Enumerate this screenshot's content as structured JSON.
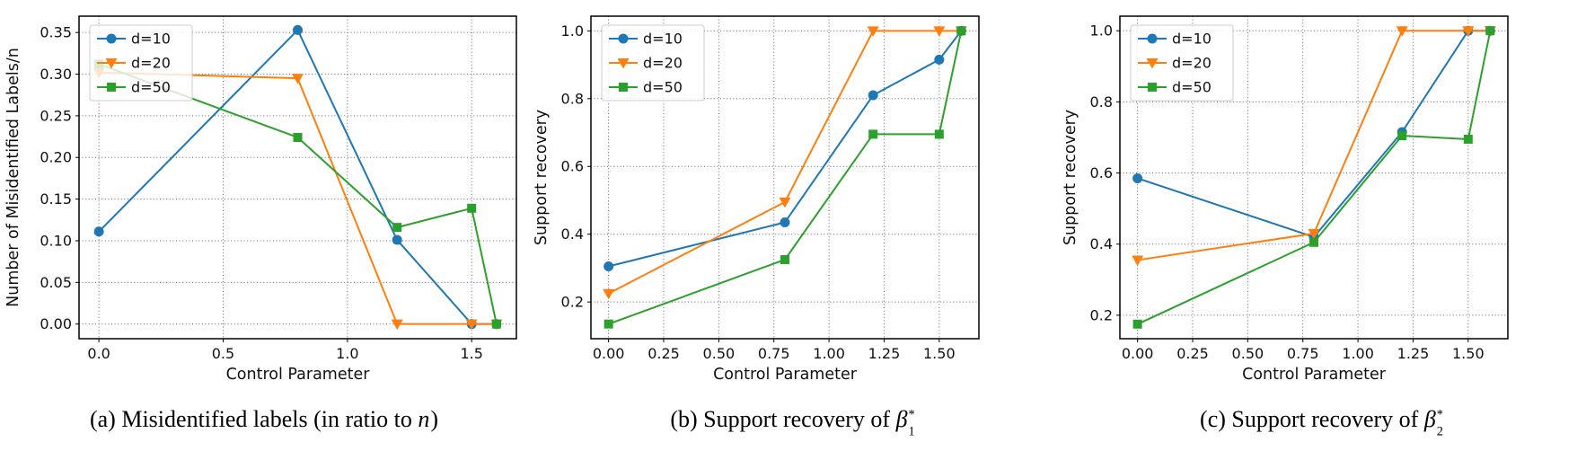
{
  "colors": {
    "d10": "#1f77b4",
    "d20": "#ff7f0e",
    "d50": "#2ca02c",
    "grid": "#666666",
    "spine": "#000000",
    "legend_border": "#cccccc"
  },
  "captions": [
    {
      "prefix": "(a) Misidentified labels (in ratio to ",
      "italic": "n",
      "suffix": ")",
      "symbol": "",
      "sub": "",
      "sup": ""
    },
    {
      "prefix": "(b) Support recovery of ",
      "italic": "",
      "suffix": "",
      "symbol": "β",
      "sub": "1",
      "sup": "*"
    },
    {
      "prefix": "(c) Support recovery of ",
      "italic": "",
      "suffix": "",
      "symbol": "β",
      "sub": "2",
      "sup": "*"
    }
  ],
  "chart_data": [
    {
      "type": "line",
      "title": "(a) Misidentified labels (in ratio to n)",
      "xlabel": "Control Parameter",
      "ylabel": "Number of Misidentified Labels/n",
      "x": [
        0.0,
        0.8,
        1.2,
        1.5,
        1.6
      ],
      "series": [
        {
          "name": "d=10",
          "color": "#1f77b4",
          "marker": "circle",
          "values": [
            0.111,
            0.353,
            0.101,
            0.0,
            0.0
          ]
        },
        {
          "name": "d=20",
          "color": "#ff7f0e",
          "marker": "triangle-down",
          "values": [
            0.302,
            0.295,
            0.0,
            0.0,
            0.0
          ]
        },
        {
          "name": "d=50",
          "color": "#2ca02c",
          "marker": "square",
          "values": [
            0.312,
            0.224,
            0.116,
            0.139,
            0.0
          ]
        }
      ],
      "xlim": [
        -0.08,
        1.68
      ],
      "ylim": [
        -0.0176,
        0.3696
      ],
      "xticks": {
        "values": [
          0.0,
          0.5,
          1.0,
          1.5
        ],
        "labels": [
          "0.0",
          "0.5",
          "1.0",
          "1.5"
        ]
      },
      "yticks": {
        "values": [
          0.0,
          0.05,
          0.1,
          0.15,
          0.2,
          0.25,
          0.3,
          0.35
        ],
        "labels": [
          "0.00",
          "0.05",
          "0.10",
          "0.15",
          "0.20",
          "0.25",
          "0.30",
          "0.35"
        ]
      },
      "legend": {
        "position": "upper-left",
        "entries": [
          "d=10",
          "d=20",
          "d=50"
        ]
      },
      "grid": "dotted"
    },
    {
      "type": "line",
      "title": "(b) Support recovery of β1*",
      "xlabel": "Control Parameter",
      "ylabel": "Support recovery",
      "x": [
        0.0,
        0.8,
        1.2,
        1.5,
        1.6
      ],
      "series": [
        {
          "name": "d=10",
          "color": "#1f77b4",
          "marker": "circle",
          "values": [
            0.305,
            0.435,
            0.81,
            0.915,
            1.0
          ]
        },
        {
          "name": "d=20",
          "color": "#ff7f0e",
          "marker": "triangle-down",
          "values": [
            0.225,
            0.495,
            1.0,
            1.0,
            1.0
          ]
        },
        {
          "name": "d=50",
          "color": "#2ca02c",
          "marker": "square",
          "values": [
            0.135,
            0.325,
            0.695,
            0.695,
            1.0
          ]
        }
      ],
      "xlim": [
        -0.08,
        1.68
      ],
      "ylim": [
        0.0917,
        1.0433
      ],
      "xticks": {
        "values": [
          0.0,
          0.25,
          0.5,
          0.75,
          1.0,
          1.25,
          1.5
        ],
        "labels": [
          "0.00",
          "0.25",
          "0.50",
          "0.75",
          "1.00",
          "1.25",
          "1.50"
        ]
      },
      "yticks": {
        "values": [
          0.2,
          0.4,
          0.6,
          0.8,
          1.0
        ],
        "labels": [
          "0.2",
          "0.4",
          "0.6",
          "0.8",
          "1.0"
        ]
      },
      "legend": {
        "position": "upper-left",
        "entries": [
          "d=10",
          "d=20",
          "d=50"
        ]
      },
      "grid": "dotted"
    },
    {
      "type": "line",
      "title": "(c) Support recovery of β2*",
      "xlabel": "Control Parameter",
      "ylabel": "Support recovery",
      "x": [
        0.0,
        0.8,
        1.2,
        1.5,
        1.6
      ],
      "series": [
        {
          "name": "d=10",
          "color": "#1f77b4",
          "marker": "circle",
          "values": [
            0.585,
            0.42,
            0.715,
            1.0,
            1.0
          ]
        },
        {
          "name": "d=20",
          "color": "#ff7f0e",
          "marker": "triangle-down",
          "values": [
            0.355,
            0.43,
            1.0,
            1.0,
            1.0
          ]
        },
        {
          "name": "d=50",
          "color": "#2ca02c",
          "marker": "square",
          "values": [
            0.175,
            0.405,
            0.705,
            0.695,
            1.0
          ]
        }
      ],
      "xlim": [
        -0.08,
        1.68
      ],
      "ylim": [
        0.134,
        1.041
      ],
      "xticks": {
        "values": [
          0.0,
          0.25,
          0.5,
          0.75,
          1.0,
          1.25,
          1.5
        ],
        "labels": [
          "0.00",
          "0.25",
          "0.50",
          "0.75",
          "1.00",
          "1.25",
          "1.50"
        ]
      },
      "yticks": {
        "values": [
          0.2,
          0.4,
          0.6,
          0.8,
          1.0
        ],
        "labels": [
          "0.2",
          "0.4",
          "0.6",
          "0.8",
          "1.0"
        ]
      },
      "legend": {
        "position": "upper-left",
        "entries": [
          "d=10",
          "d=20",
          "d=50"
        ]
      },
      "grid": "dotted"
    }
  ]
}
